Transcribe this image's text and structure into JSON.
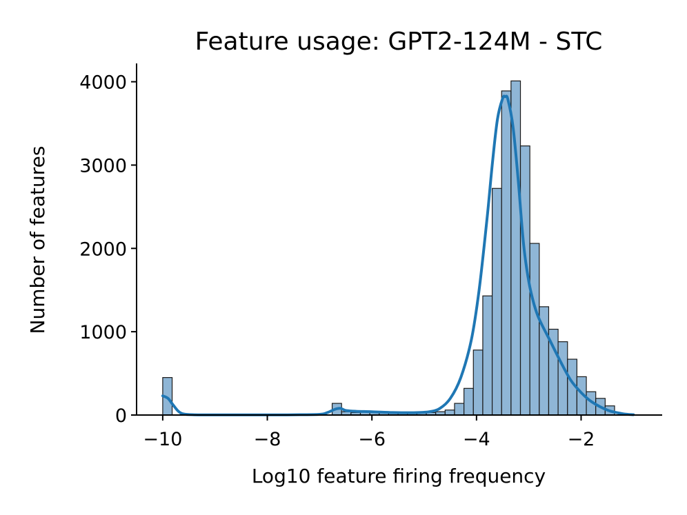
{
  "chart_data": {
    "type": "bar",
    "title": "Feature usage: GPT2-124M - STC",
    "xlabel": "Log10 feature firing frequency",
    "ylabel": "Number of features",
    "xlim": [
      -10.5,
      -0.45
    ],
    "ylim": [
      0,
      4220
    ],
    "xticks": [
      -10,
      -8,
      -6,
      -4,
      -2
    ],
    "xtick_labels": [
      "−10",
      "−8",
      "−6",
      "−4",
      "−2"
    ],
    "yticks": [
      0,
      1000,
      2000,
      3000,
      4000
    ],
    "ytick_labels": [
      "0",
      "1000",
      "2000",
      "3000",
      "4000"
    ],
    "bin_width": 0.18,
    "bins": [
      {
        "x0": -10.0,
        "count": 450
      },
      {
        "x0": -6.76,
        "count": 140
      },
      {
        "x0": -6.58,
        "count": 40
      },
      {
        "x0": -6.4,
        "count": 30
      },
      {
        "x0": -6.22,
        "count": 35
      },
      {
        "x0": -6.04,
        "count": 35
      },
      {
        "x0": -5.86,
        "count": 30
      },
      {
        "x0": -5.68,
        "count": 25
      },
      {
        "x0": -5.5,
        "count": 25
      },
      {
        "x0": -5.32,
        "count": 22
      },
      {
        "x0": -5.14,
        "count": 25
      },
      {
        "x0": -4.96,
        "count": 30
      },
      {
        "x0": -4.78,
        "count": 40
      },
      {
        "x0": -4.6,
        "count": 60
      },
      {
        "x0": -4.42,
        "count": 140
      },
      {
        "x0": -4.24,
        "count": 320
      },
      {
        "x0": -4.06,
        "count": 780
      },
      {
        "x0": -3.88,
        "count": 1430
      },
      {
        "x0": -3.7,
        "count": 2720
      },
      {
        "x0": -3.52,
        "count": 3890
      },
      {
        "x0": -3.34,
        "count": 4010
      },
      {
        "x0": -3.16,
        "count": 3230
      },
      {
        "x0": -2.98,
        "count": 2060
      },
      {
        "x0": -2.8,
        "count": 1300
      },
      {
        "x0": -2.62,
        "count": 1030
      },
      {
        "x0": -2.44,
        "count": 880
      },
      {
        "x0": -2.26,
        "count": 670
      },
      {
        "x0": -2.08,
        "count": 460
      },
      {
        "x0": -1.9,
        "count": 280
      },
      {
        "x0": -1.72,
        "count": 200
      },
      {
        "x0": -1.54,
        "count": 110
      }
    ],
    "kde": {
      "x": [
        -10.0,
        -9.9,
        -9.8,
        -9.7,
        -9.6,
        -9.4,
        -9.0,
        -8.0,
        -7.5,
        -7.0,
        -6.85,
        -6.7,
        -6.6,
        -6.5,
        -6.3,
        -6.0,
        -5.6,
        -5.2,
        -4.9,
        -4.7,
        -4.5,
        -4.3,
        -4.1,
        -3.95,
        -3.8,
        -3.7,
        -3.6,
        -3.5,
        -3.45,
        -3.4,
        -3.3,
        -3.2,
        -3.1,
        -3.0,
        -2.9,
        -2.8,
        -2.6,
        -2.4,
        -2.2,
        -2.0,
        -1.8,
        -1.5,
        -1.2,
        -1.0
      ],
      "y": [
        230,
        200,
        120,
        45,
        12,
        3,
        2,
        2,
        3,
        8,
        30,
        70,
        80,
        55,
        45,
        40,
        30,
        28,
        40,
        80,
        200,
        450,
        900,
        1500,
        2350,
        3000,
        3550,
        3800,
        3820,
        3790,
        3450,
        2800,
        2050,
        1600,
        1330,
        1150,
        900,
        650,
        420,
        270,
        160,
        60,
        15,
        4
      ]
    }
  }
}
